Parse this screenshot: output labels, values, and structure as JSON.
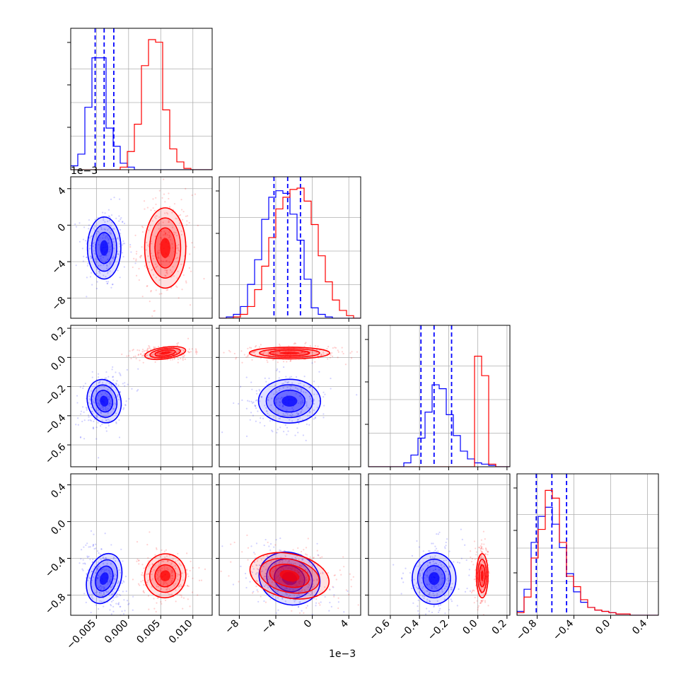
{
  "chart_data": {
    "type": "corner",
    "colors": {
      "series_a": "#0000ff",
      "series_b": "#ff0000"
    },
    "grid": true,
    "params": [
      {
        "range": [
          -0.009,
          0.013
        ],
        "ticks": [
          -0.005,
          0.0,
          0.005,
          0.01
        ],
        "tick_labels": [
          "−0.005",
          "0.000",
          "0.005",
          "0.010"
        ]
      },
      {
        "range": [
          -0.0102,
          0.0053
        ],
        "ticks": [
          -0.008,
          -0.004,
          0.0,
          0.004
        ],
        "tick_labels": [
          "−8",
          "−4",
          "0",
          "4"
        ],
        "offset": "1e−3"
      },
      {
        "range": [
          -0.75,
          0.22
        ],
        "ticks": [
          -0.6,
          -0.4,
          -0.2,
          0.0,
          0.2
        ],
        "tick_labels": [
          "−0.6",
          "−0.4",
          "−0.2",
          "0.0",
          "0.2"
        ]
      },
      {
        "range": [
          -1.02,
          0.52
        ],
        "ticks": [
          -0.8,
          -0.4,
          0.0,
          0.4
        ],
        "tick_labels": [
          "−0.8",
          "−0.4",
          "0.0",
          "0.4"
        ]
      }
    ],
    "series": [
      {
        "color": "#0000ff",
        "mean": [
          -0.0038,
          -0.0025,
          -0.3,
          -0.62
        ],
        "std": [
          0.0013,
          0.0017,
          0.075,
          0.14
        ],
        "quantiles": [
          [
            -0.0052,
            -0.0038,
            -0.0023
          ],
          [
            -0.0042,
            -0.0027,
            -0.0013
          ],
          [
            -0.39,
            -0.3,
            -0.18
          ],
          [
            -0.81,
            -0.64,
            -0.48
          ]
        ],
        "hist": [
          [
            0.03,
            0.12,
            0.48,
            0.86,
            0.86,
            0.32,
            0.18,
            0.05,
            0.02,
            0,
            0,
            0,
            0,
            0,
            0,
            0,
            0,
            0,
            0,
            0
          ],
          [
            0,
            0.01,
            0.03,
            0.09,
            0.26,
            0.45,
            0.76,
            0.93,
            0.98,
            0.96,
            0.8,
            0.6,
            0.3,
            0.08,
            0.03,
            0.01,
            0,
            0,
            0,
            0
          ],
          [
            0,
            0,
            0,
            0,
            0,
            0.03,
            0.09,
            0.22,
            0.42,
            0.63,
            0.6,
            0.4,
            0.24,
            0.12,
            0.06,
            0.03,
            0.02,
            0.01,
            0,
            0
          ],
          [
            0.03,
            0.2,
            0.56,
            0.76,
            0.83,
            0.7,
            0.52,
            0.32,
            0.18,
            0.1,
            0.06,
            0.04,
            0.03,
            0.02,
            0.01,
            0.01,
            0,
            0,
            0,
            0
          ]
        ]
      },
      {
        "color": "#ff0000",
        "mean": [
          0.0057,
          -0.0025,
          0.03,
          -0.59
        ],
        "std": [
          0.0016,
          0.0022,
          0.02,
          0.12
        ],
        "quantiles": [],
        "hist": [
          [
            0,
            0,
            0,
            0,
            0,
            0,
            0,
            0.02,
            0.14,
            0.35,
            0.8,
            1.0,
            0.98,
            0.46,
            0.16,
            0.06,
            0.01,
            0,
            0,
            0
          ],
          [
            0,
            0,
            0.01,
            0.03,
            0.09,
            0.22,
            0.4,
            0.62,
            0.84,
            0.93,
            0.99,
            1.0,
            0.9,
            0.72,
            0.48,
            0.28,
            0.14,
            0.06,
            0.02,
            0
          ],
          [
            0,
            0,
            0,
            0,
            0,
            0,
            0,
            0,
            0,
            0,
            0,
            0,
            0,
            0,
            0,
            0.85,
            0.7,
            0.02,
            0,
            0
          ],
          [
            0.02,
            0.14,
            0.44,
            0.66,
            0.96,
            0.9,
            0.56,
            0.3,
            0.22,
            0.12,
            0.06,
            0.04,
            0.03,
            0.02,
            0.01,
            0.01,
            0,
            0,
            0,
            0
          ]
        ]
      }
    ]
  }
}
